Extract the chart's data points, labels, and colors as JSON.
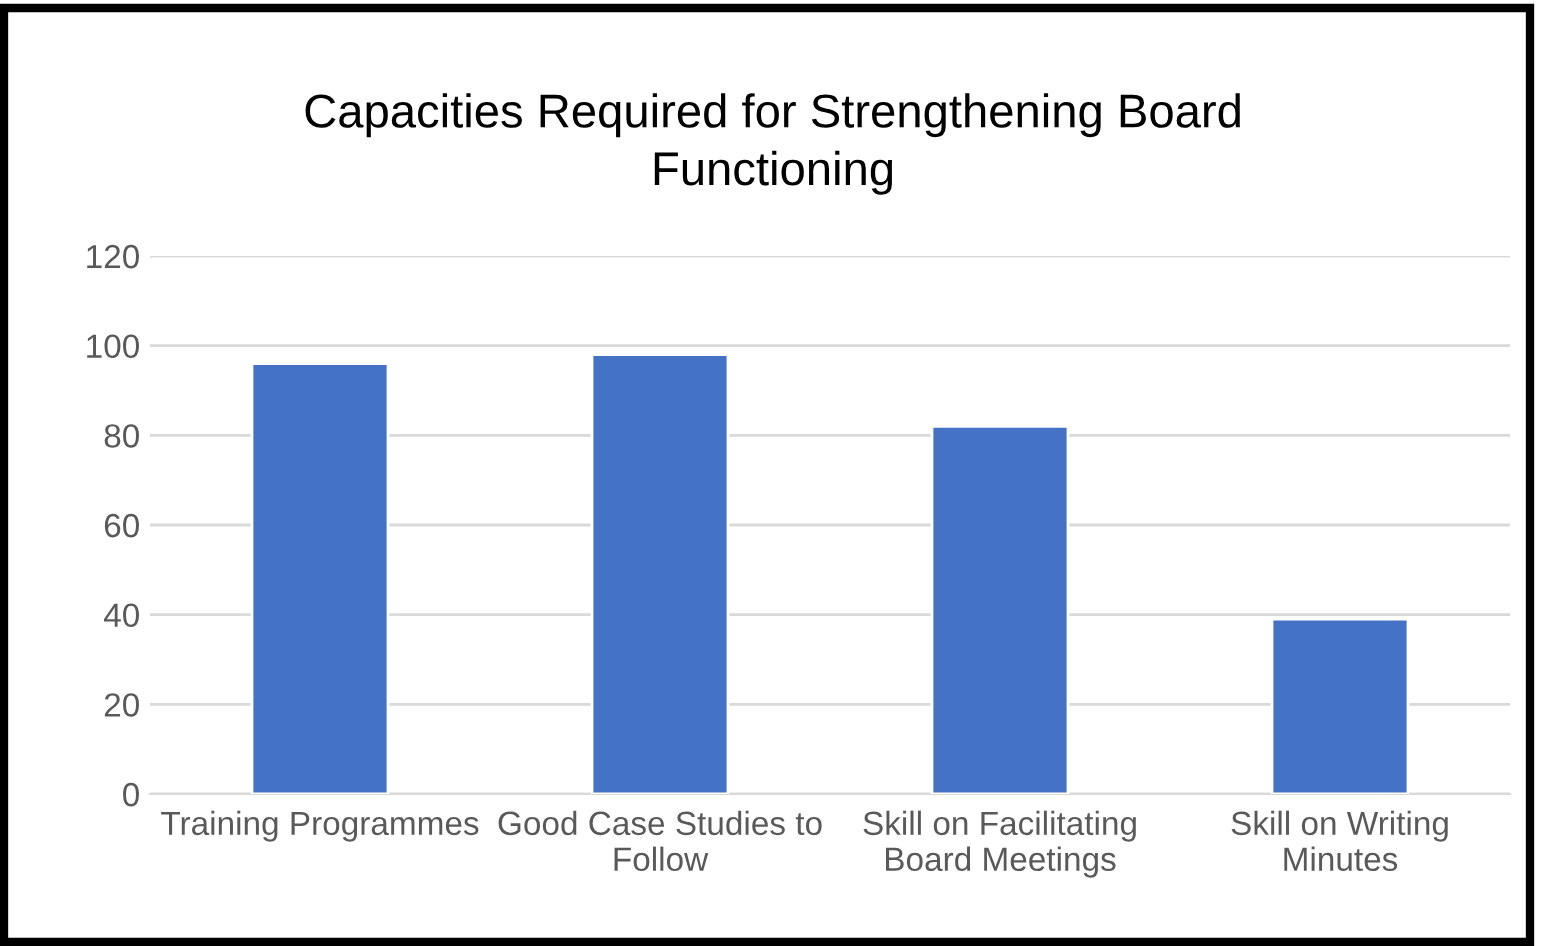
{
  "chart_data": {
    "type": "bar",
    "title": "Capacities Required for Strengthening Board\nFunctioning",
    "categories": [
      "Training Programmes",
      "Good Case Studies to\nFollow",
      "Skill on Facilitating\nBoard Meetings",
      "Skill on Writing\nMinutes"
    ],
    "values": [
      96,
      98,
      82,
      39
    ],
    "color": "#4472c4",
    "ylim": [
      0,
      120
    ],
    "yticks": [
      0,
      20,
      40,
      60,
      80,
      100,
      120
    ],
    "grid": "y",
    "legend": false
  }
}
